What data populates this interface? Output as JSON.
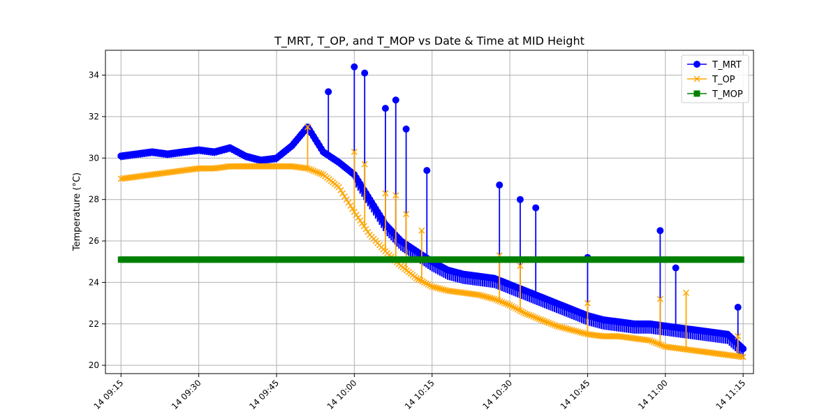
{
  "chart_data": {
    "type": "line",
    "title": "T_MRT, T_OP, and T_MOP vs Date & Time at MID Height",
    "xlabel": "",
    "ylabel": "Temperature (°C)",
    "ylim": [
      19.6,
      35.2
    ],
    "xlim": [
      "14 09:12",
      "14 11:17"
    ],
    "grid": true,
    "legend_position": "upper right",
    "y_ticks": [
      20,
      22,
      24,
      26,
      28,
      30,
      32,
      34
    ],
    "x_ticks": [
      {
        "t": "14 09:15",
        "label": "14 09:15"
      },
      {
        "t": "14 09:30",
        "label": "14 09:30"
      },
      {
        "t": "14 09:45",
        "label": "14 09:45"
      },
      {
        "t": "14 10:00",
        "label": "14 10:00"
      },
      {
        "t": "14 10:15",
        "label": "14 10:15"
      },
      {
        "t": "14 10:30",
        "label": "14 10:30"
      },
      {
        "t": "14 10:45",
        "label": "14 10:45"
      },
      {
        "t": "14 11:00",
        "label": "14 11:00"
      },
      {
        "t": "14 11:15",
        "label": "14 11:15"
      }
    ],
    "series": [
      {
        "name": "T_MRT",
        "color": "#0000ff",
        "marker": "circle",
        "x": [
          "14 09:15",
          "14 09:18",
          "14 09:21",
          "14 09:24",
          "14 09:27",
          "14 09:30",
          "14 09:33",
          "14 09:36",
          "14 09:39",
          "14 09:42",
          "14 09:45",
          "14 09:48",
          "14 09:51",
          "14 09:54",
          "14 09:57",
          "14 10:00",
          "14 10:03",
          "14 10:06",
          "14 10:09",
          "14 10:12",
          "14 10:15",
          "14 10:18",
          "14 10:21",
          "14 10:24",
          "14 10:27",
          "14 10:30",
          "14 10:33",
          "14 10:36",
          "14 10:39",
          "14 10:42",
          "14 10:45",
          "14 10:48",
          "14 10:51",
          "14 10:54",
          "14 10:57",
          "14 11:00",
          "14 11:03",
          "14 11:06",
          "14 11:09",
          "14 11:12",
          "14 11:15"
        ],
        "y": [
          30.1,
          30.2,
          30.3,
          30.2,
          30.3,
          30.4,
          30.3,
          30.5,
          30.1,
          29.9,
          30.0,
          30.6,
          31.5,
          30.3,
          29.8,
          29.2,
          28.0,
          26.8,
          26.0,
          25.5,
          25.0,
          24.6,
          24.4,
          24.3,
          24.2,
          23.9,
          23.6,
          23.3,
          23.0,
          22.7,
          22.4,
          22.2,
          22.1,
          22.0,
          22.0,
          21.9,
          21.8,
          21.7,
          21.6,
          21.5,
          20.8
        ]
      },
      {
        "name": "T_OP",
        "color": "#ffa500",
        "marker": "x",
        "x": [
          "14 09:15",
          "14 09:18",
          "14 09:21",
          "14 09:24",
          "14 09:27",
          "14 09:30",
          "14 09:33",
          "14 09:36",
          "14 09:39",
          "14 09:42",
          "14 09:45",
          "14 09:48",
          "14 09:51",
          "14 09:54",
          "14 09:57",
          "14 10:00",
          "14 10:03",
          "14 10:06",
          "14 10:09",
          "14 10:12",
          "14 10:15",
          "14 10:18",
          "14 10:21",
          "14 10:24",
          "14 10:27",
          "14 10:30",
          "14 10:33",
          "14 10:36",
          "14 10:39",
          "14 10:42",
          "14 10:45",
          "14 10:48",
          "14 10:51",
          "14 10:54",
          "14 10:57",
          "14 11:00",
          "14 11:03",
          "14 11:06",
          "14 11:09",
          "14 11:12",
          "14 11:15"
        ],
        "y": [
          29.0,
          29.1,
          29.2,
          29.3,
          29.4,
          29.5,
          29.5,
          29.6,
          29.6,
          29.6,
          29.6,
          29.6,
          29.5,
          29.2,
          28.6,
          27.4,
          26.3,
          25.5,
          24.8,
          24.2,
          23.8,
          23.6,
          23.5,
          23.4,
          23.2,
          22.9,
          22.5,
          22.2,
          21.9,
          21.7,
          21.5,
          21.4,
          21.4,
          21.3,
          21.2,
          20.9,
          20.8,
          20.7,
          20.6,
          20.5,
          20.4
        ]
      },
      {
        "name": "T_MOP",
        "color": "#008000",
        "marker": "square",
        "x": [
          "14 09:15",
          "14 11:15"
        ],
        "y": [
          25.1,
          25.1
        ]
      }
    ],
    "spikes": {
      "T_MRT": [
        {
          "t": "14 09:55",
          "y": 33.2
        },
        {
          "t": "14 10:00",
          "y": 34.4
        },
        {
          "t": "14 10:02",
          "y": 34.1
        },
        {
          "t": "14 10:06",
          "y": 32.4
        },
        {
          "t": "14 10:08",
          "y": 32.8
        },
        {
          "t": "14 10:10",
          "y": 31.4
        },
        {
          "t": "14 10:14",
          "y": 29.4
        },
        {
          "t": "14 10:28",
          "y": 28.7
        },
        {
          "t": "14 10:32",
          "y": 28.0
        },
        {
          "t": "14 10:35",
          "y": 27.6
        },
        {
          "t": "14 10:45",
          "y": 25.2
        },
        {
          "t": "14 10:59",
          "y": 26.5
        },
        {
          "t": "14 11:02",
          "y": 24.7
        },
        {
          "t": "14 11:14",
          "y": 22.8
        }
      ],
      "T_OP": [
        {
          "t": "14 09:51",
          "y": 31.5
        },
        {
          "t": "14 10:00",
          "y": 30.3
        },
        {
          "t": "14 10:02",
          "y": 29.7
        },
        {
          "t": "14 10:06",
          "y": 28.3
        },
        {
          "t": "14 10:08",
          "y": 28.2
        },
        {
          "t": "14 10:10",
          "y": 27.3
        },
        {
          "t": "14 10:13",
          "y": 26.5
        },
        {
          "t": "14 10:28",
          "y": 25.3
        },
        {
          "t": "14 10:32",
          "y": 24.8
        },
        {
          "t": "14 10:45",
          "y": 23.0
        },
        {
          "t": "14 10:59",
          "y": 23.2
        },
        {
          "t": "14 11:04",
          "y": 23.5
        },
        {
          "t": "14 11:14",
          "y": 21.4
        }
      ]
    }
  }
}
